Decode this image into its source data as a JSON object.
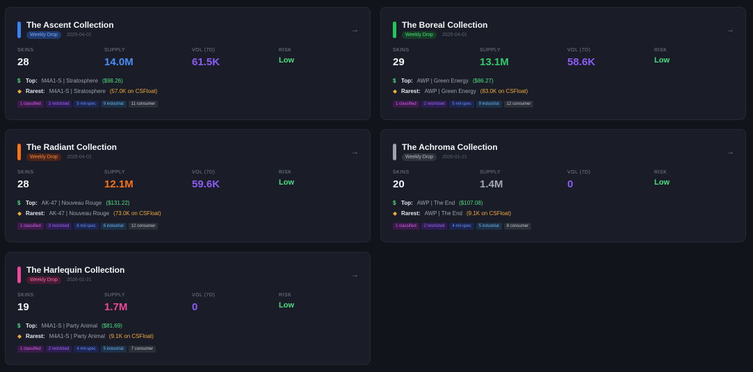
{
  "stat_labels": {
    "skins": "SKINS",
    "supply": "SUPPLY",
    "vol": "VOL (7D)",
    "risk": "RISK"
  },
  "line_labels": {
    "top": "Top:",
    "rarest": "Rarest:"
  },
  "icons": {
    "top": "dollar-icon",
    "rarest": "gem-icon",
    "open": "arrow-right-icon"
  },
  "cards": [
    {
      "title": "The Ascent Collection",
      "badge": "Weekly Drop",
      "date": "2025-04-01",
      "accent": "#3b82f6",
      "badge_bg": "#1e3a6e",
      "badge_fg": "#7eaaf5",
      "supply_color": "#4a8df6",
      "skins": "28",
      "supply": "14.0M",
      "vol": "61.5K",
      "risk": "Low",
      "top_skin": "M4A1-S | Stratosphere",
      "top_price": "($98.26)",
      "rarest_skin": "M4A1-S | Stratosphere",
      "rarest_float": "(57.0K on CSFloat)",
      "tags": [
        "1 classified",
        "2 restricted",
        "5 mil-spec",
        "9 industrial",
        "11 consumer"
      ]
    },
    {
      "title": "The Boreal Collection",
      "badge": "Weekly Drop",
      "date": "2025-04-01",
      "accent": "#22c55e",
      "badge_bg": "#153d26",
      "badge_fg": "#4ade80",
      "supply_color": "#2fca6a",
      "skins": "29",
      "supply": "13.1M",
      "vol": "58.6K",
      "risk": "Low",
      "top_skin": "AWP | Green Energy",
      "top_price": "($86.27)",
      "rarest_skin": "AWP | Green Energy",
      "rarest_float": "(83.0K on CSFloat)",
      "tags": [
        "1 classified",
        "2 restricted",
        "5 mil-spec",
        "9 industrial",
        "12 consumer"
      ]
    },
    {
      "title": "The Radiant Collection",
      "badge": "Weekly Drop",
      "date": "2025-04-01",
      "accent": "#f97316",
      "badge_bg": "#4a2416",
      "badge_fg": "#f58a4c",
      "supply_color": "#f97316",
      "skins": "28",
      "supply": "12.1M",
      "vol": "59.6K",
      "risk": "Low",
      "top_skin": "AK-47 | Nouveau Rouge",
      "top_price": "($131.22)",
      "rarest_skin": "AK-47 | Nouveau Rouge",
      "rarest_float": "(73.0K on CSFloat)",
      "tags": [
        "1 classified",
        "3 restricted",
        "6 mil-spec",
        "6 industrial",
        "12 consumer"
      ]
    },
    {
      "title": "The Achroma Collection",
      "badge": "Weekly Drop",
      "date": "2026-01-21",
      "accent": "#9ca3af",
      "badge_bg": "#2f333c",
      "badge_fg": "#b7bcc6",
      "supply_color": "#a3a8b3",
      "skins": "20",
      "supply": "1.4M",
      "vol": "0",
      "risk": "Low",
      "top_skin": "AWP | The End",
      "top_price": "($107.08)",
      "rarest_skin": "AWP | The End",
      "rarest_float": "(9.1K on CSFloat)",
      "tags": [
        "1 classified",
        "2 restricted",
        "4 mil-spec",
        "5 industrial",
        "8 consumer"
      ]
    },
    {
      "title": "The Harlequin Collection",
      "badge": "Weekly Drop",
      "date": "2026-01-21",
      "accent": "#ec4899",
      "badge_bg": "#4a1a34",
      "badge_fg": "#ef6aa8",
      "supply_color": "#ec4899",
      "skins": "19",
      "supply": "1.7M",
      "vol": "0",
      "risk": "Low",
      "top_skin": "M4A1-S | Party Animal",
      "top_price": "($81.69)",
      "rarest_skin": "M4A1-S | Party Animal",
      "rarest_float": "(9.1K on CSFloat)",
      "tags": [
        "1 classified",
        "2 restricted",
        "4 mil-spec",
        "5 industrial",
        "7 consumer"
      ]
    }
  ]
}
